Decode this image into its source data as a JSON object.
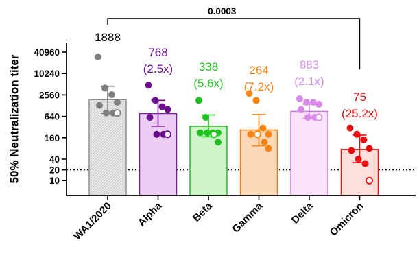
{
  "chart_data": {
    "type": "bar",
    "ylabel": "50% Neutralization titer",
    "y_scale": "log2",
    "ylim": [
      4,
      51200
    ],
    "y_ticks": [
      10,
      20,
      40,
      160,
      640,
      2560,
      10240,
      40960
    ],
    "y_tick_labels": [
      "10",
      "20",
      "40",
      "160",
      "640",
      "2560",
      "10240",
      "40960"
    ],
    "threshold_line": 20,
    "categories": [
      "WA1/2020",
      "Alpha",
      "Beta",
      "Gamma",
      "Delta",
      "Omicron"
    ],
    "values": [
      1888,
      768,
      338,
      264,
      883,
      75
    ],
    "annotations": [
      {
        "line1": "1888",
        "line2": ""
      },
      {
        "line1": "768",
        "line2": "(2.5x)"
      },
      {
        "line1": "338",
        "line2": "(5.6x)"
      },
      {
        "line1": "264",
        "line2": "(7.2x)"
      },
      {
        "line1": "883",
        "line2": "(2.1x)"
      },
      {
        "line1": "75",
        "line2": "(25.2x)"
      }
    ],
    "error_bars": [
      [
        780,
        4500
      ],
      [
        340,
        1800
      ],
      [
        170,
        700
      ],
      [
        95,
        720
      ],
      [
        560,
        1400
      ],
      [
        32,
        190
      ]
    ],
    "points": [
      [
        30000,
        4000,
        2600,
        1600,
        1300,
        800,
        800,
        800
      ],
      [
        4800,
        1800,
        1200,
        1000,
        600,
        200,
        200,
        200
      ],
      [
        1800,
        600,
        220,
        220,
        220,
        220,
        200,
        120
      ],
      [
        2800,
        1800,
        300,
        200,
        200,
        200,
        120,
        80
      ],
      [
        2000,
        1600,
        1600,
        1400,
        1000,
        600,
        600,
        600
      ],
      [
        300,
        200,
        140,
        80,
        70,
        40,
        30,
        10
      ]
    ],
    "open_point_index": [
      7,
      7,
      6,
      5,
      7,
      7
    ],
    "bar_fill_colors": [
      "#e6e6e6",
      "#eccdf3",
      "#cdf5c8",
      "#fbd8b8",
      "#fbe3fb",
      "#fde0dc"
    ],
    "bar_edge_colors": [
      "#8c8c8c",
      "#7a1aa0",
      "#2bb52b",
      "#f07d14",
      "#cc7ae8",
      "#e81313"
    ],
    "point_colors": [
      "#7f7f7f",
      "#6b0f8f",
      "#1ec21e",
      "#f58412",
      "#d78ae8",
      "#e81010"
    ],
    "comparison": {
      "from": "WA1/2020",
      "to": "Omicron",
      "p_value": "0.0003"
    }
  }
}
